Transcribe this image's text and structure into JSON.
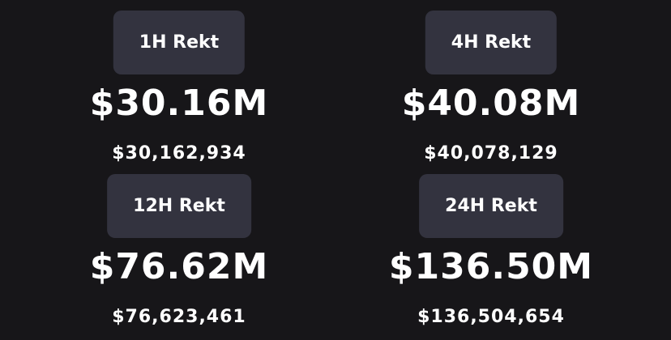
{
  "cards": [
    {
      "label": "1H Rekt",
      "value": "$30.16M",
      "exact": "$30,162,934"
    },
    {
      "label": "4H Rekt",
      "value": "$40.08M",
      "exact": "$40,078,129"
    },
    {
      "label": "12H Rekt",
      "value": "$76.62M",
      "exact": "$76,623,461"
    },
    {
      "label": "24H Rekt",
      "value": "$136.50M",
      "exact": "$136,504,654"
    }
  ]
}
